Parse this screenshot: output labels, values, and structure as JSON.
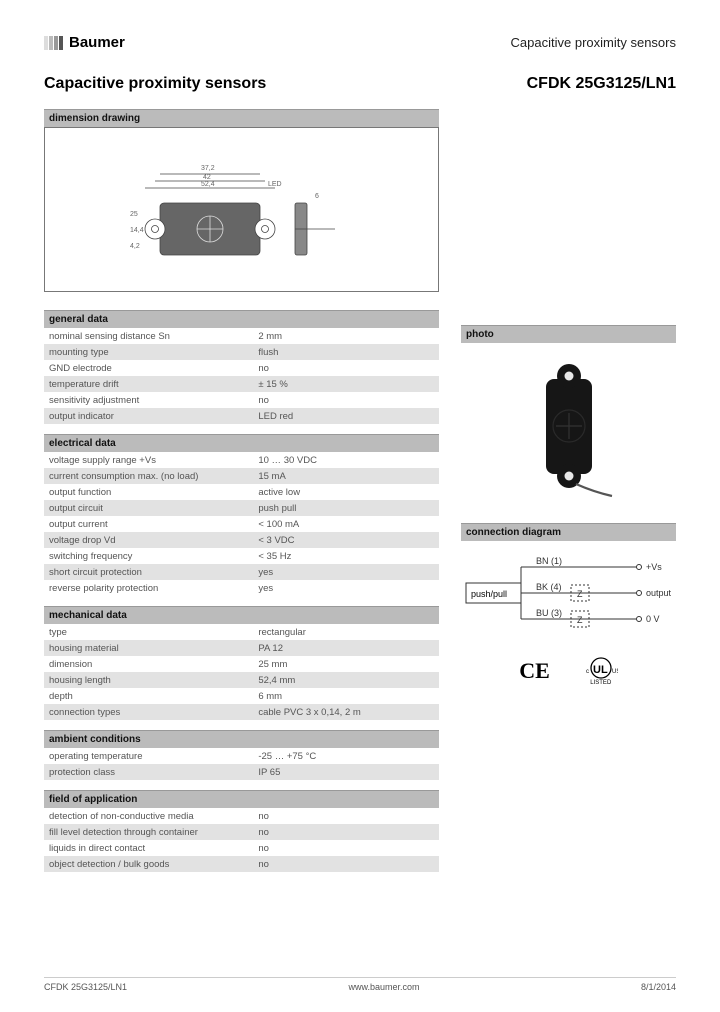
{
  "brand": "Baumer",
  "header_category": "Capacitive proximity sensors",
  "page_title_left": "Capacitive proximity sensors",
  "product_code": "CFDK 25G3125/LN1",
  "sections": {
    "dimension_drawing": "dimension drawing",
    "general_data": "general data",
    "electrical_data": "electrical data",
    "mechanical_data": "mechanical data",
    "ambient_conditions": "ambient conditions",
    "field_of_application": "field of application",
    "photo": "photo",
    "connection_diagram": "connection diagram"
  },
  "drawing": {
    "dims": {
      "w1": "52,4",
      "w2": "42",
      "w3": "37,2",
      "led": "LED",
      "h1": "25",
      "h2": "14,4",
      "r": "4,2",
      "d": "6"
    }
  },
  "general": [
    {
      "k": "nominal sensing distance Sn",
      "v": "2 mm"
    },
    {
      "k": "mounting type",
      "v": "flush"
    },
    {
      "k": "GND electrode",
      "v": "no"
    },
    {
      "k": "temperature drift",
      "v": "± 15 %"
    },
    {
      "k": "sensitivity adjustment",
      "v": "no"
    },
    {
      "k": "output indicator",
      "v": "LED red"
    }
  ],
  "electrical": [
    {
      "k": "voltage supply range +Vs",
      "v": "10 … 30 VDC"
    },
    {
      "k": "current consumption max. (no load)",
      "v": "15 mA"
    },
    {
      "k": "output function",
      "v": "active low"
    },
    {
      "k": "output circuit",
      "v": "push pull"
    },
    {
      "k": "output current",
      "v": "< 100 mA"
    },
    {
      "k": "voltage drop Vd",
      "v": "< 3 VDC"
    },
    {
      "k": "switching frequency",
      "v": "< 35 Hz"
    },
    {
      "k": "short circuit protection",
      "v": "yes"
    },
    {
      "k": "reverse polarity protection",
      "v": "yes"
    }
  ],
  "mechanical": [
    {
      "k": "type",
      "v": "rectangular"
    },
    {
      "k": "housing material",
      "v": "PA 12"
    },
    {
      "k": "dimension",
      "v": "25 mm"
    },
    {
      "k": "housing length",
      "v": "52,4 mm"
    },
    {
      "k": "depth",
      "v": "6 mm"
    },
    {
      "k": "connection types",
      "v": "cable PVC 3 x 0,14, 2 m"
    }
  ],
  "ambient": [
    {
      "k": "operating temperature",
      "v": "-25 … +75 °C"
    },
    {
      "k": "protection class",
      "v": "IP 65"
    }
  ],
  "field": [
    {
      "k": "detection of non-conductive media",
      "v": "no"
    },
    {
      "k": "fill level detection through container",
      "v": "no"
    },
    {
      "k": "liquids in direct contact",
      "v": "no"
    },
    {
      "k": "object detection / bulk goods",
      "v": "no"
    }
  ],
  "connection": {
    "box_label": "push/pull",
    "wires": [
      {
        "label": "BN (1)",
        "out": "+Vs"
      },
      {
        "label": "BK (4)",
        "symbol": "Z",
        "out": "output"
      },
      {
        "label": "BU (3)",
        "symbol": "Z",
        "out": "0 V"
      }
    ]
  },
  "marks": {
    "ce": "CE",
    "ul_c": "c",
    "ul_us": "US",
    "ul_listed": "LISTED"
  },
  "footer": {
    "left": "CFDK 25G3125/LN1",
    "center": "www.baumer.com",
    "right": "8/1/2014"
  },
  "colors": {
    "header_bg": "#bbbbbb",
    "row_stripe": "#e2e2e2",
    "text_muted": "#555555"
  }
}
